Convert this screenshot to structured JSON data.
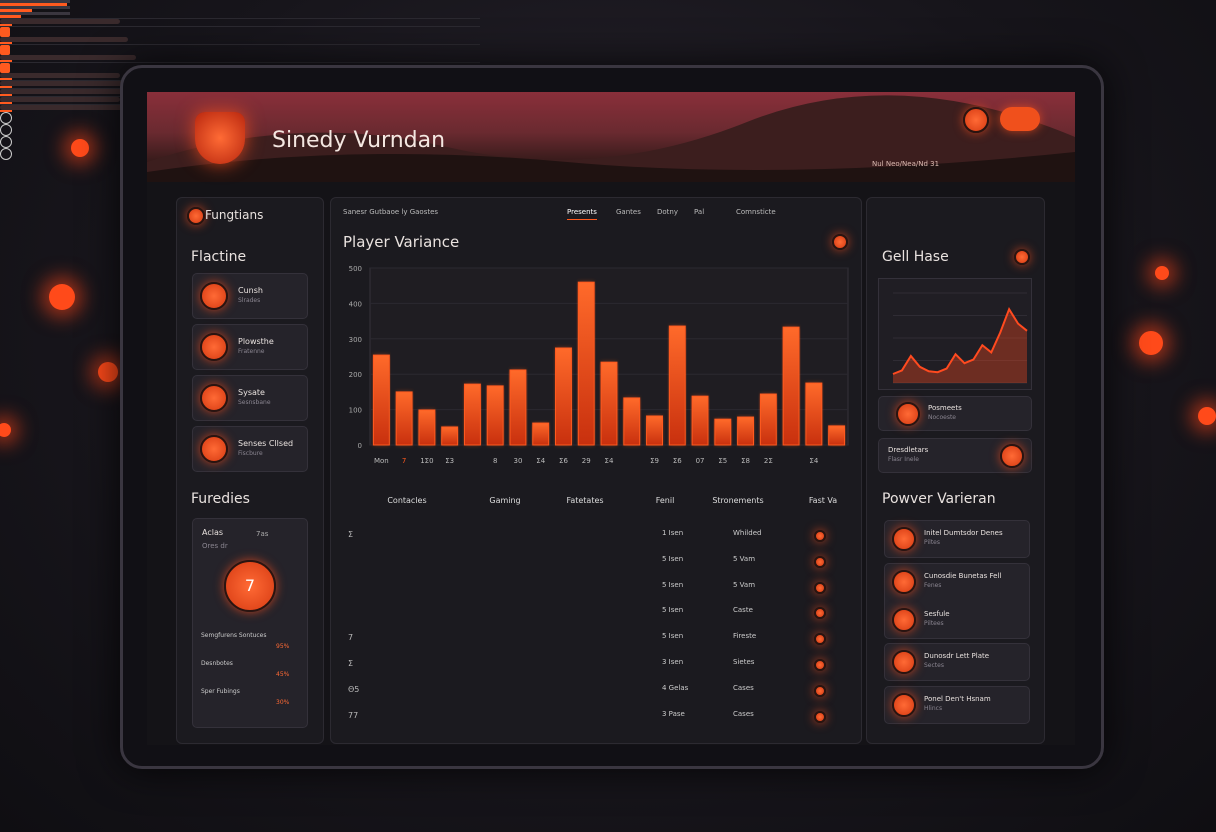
{
  "header": {
    "title": "Sinedy Vurndan",
    "caption": "Nul Neo/Nea/Nd 31"
  },
  "left": {
    "title": "Fungtians",
    "section": "Flactine",
    "items": [
      {
        "label": "Cunsh",
        "sub": "Slrades"
      },
      {
        "label": "Plowsthe",
        "sub": "Fratenne"
      },
      {
        "label": "Sysate",
        "sub": "Sesnsbane"
      },
      {
        "label": "Senses Cllsed",
        "sub": "Fiscbure"
      }
    ],
    "section2": "Furedies",
    "card": {
      "title": "Aclas",
      "tag": "7as",
      "sub": "Ores dr",
      "badge": "7",
      "progress": [
        {
          "label": "Semgfurens Sontuces",
          "value": 95,
          "value_label": "95%"
        },
        {
          "label": "Desnbotes",
          "value": 45,
          "value_label": "45%"
        },
        {
          "label": "Sper Fubings",
          "value": 30,
          "value_label": "30%"
        }
      ]
    }
  },
  "center": {
    "breadcrumb": "Sanesr Gutbaoe ly Gaostes",
    "tabs": [
      "Presents",
      "Gantes",
      "Dotny",
      "Pal",
      "Comnsticte"
    ],
    "table": {
      "columns": [
        "Contacles",
        "Gaming",
        "Fatetates",
        "Fenil",
        "Stronements",
        "Fast Va"
      ],
      "rows": [
        {
          "mark": "Σ",
          "count": "1 Isen",
          "state": "Whilded"
        },
        {
          "count": "5 Isen",
          "state": "5 Vam"
        },
        {
          "count": "5 Isen",
          "state": "5 Vam"
        },
        {
          "count": "5 Isen",
          "state": "Caste"
        },
        {
          "mark": "7",
          "count": "5 Isen",
          "state": "Fireste"
        },
        {
          "mark": "Σ",
          "count": "3 Isen",
          "state": "Sietes"
        },
        {
          "mark": "Θ5",
          "count": "4 Gelas",
          "state": "Cases"
        },
        {
          "mark": "77",
          "count": "3 Pase",
          "state": "Cases"
        }
      ]
    }
  },
  "right": {
    "title": "Gell Hase",
    "items": [
      {
        "label": "Posmeets",
        "sub": "Nocoeste"
      },
      {
        "label": "Dresdletars",
        "sub": "Flasr Inele"
      }
    ],
    "section": "Powver Varieran",
    "list": [
      {
        "label": "Initel Dumtsdor Denes",
        "sub": "Piltes"
      },
      {
        "label": "Cunosdie Bunetas Fell",
        "sub": "Fenes"
      },
      {
        "label": "Sesfule",
        "sub": "Piltees"
      },
      {
        "label": "Dunosdr Lett Plate",
        "sub": "Sectes"
      },
      {
        "label": "Ponel Den't Hsnam",
        "sub": "Hlincs"
      }
    ]
  },
  "chart_data": [
    {
      "type": "bar",
      "title": "Player Variance",
      "color": "#ff5a1f",
      "categories": [
        "Mon",
        "7",
        "1Σ0",
        "Σ3",
        null,
        "8",
        "30",
        "Σ4",
        "Σ6",
        "29",
        "Σ4",
        null,
        "Σ9",
        "Σ6",
        "07",
        "Σ5",
        "Σ8",
        "2Σ",
        null,
        "Σ4",
        null
      ],
      "values": [
        254,
        150,
        99,
        51,
        172,
        167,
        212,
        62,
        274,
        460,
        234,
        133,
        82,
        336,
        138,
        73,
        79,
        144,
        333,
        175,
        54
      ],
      "ylim": [
        0,
        500
      ],
      "yticks": [
        0,
        100,
        200,
        300,
        400,
        500
      ],
      "grid": true
    },
    {
      "type": "area",
      "color": "#ff4a1f",
      "values": [
        10,
        14,
        30,
        18,
        13,
        12,
        16,
        32,
        22,
        26,
        42,
        34,
        56,
        82,
        66,
        58
      ],
      "ylim": [
        0,
        100
      ],
      "yticks": [
        0,
        25,
        50,
        75,
        100
      ],
      "grid": true
    }
  ]
}
